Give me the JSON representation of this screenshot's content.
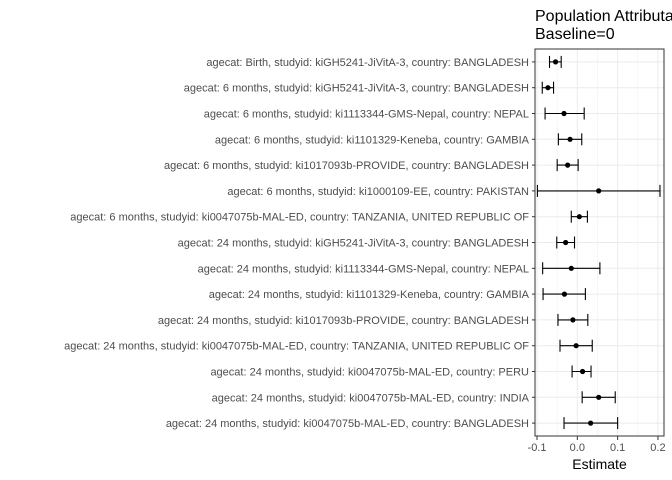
{
  "chart_data": {
    "type": "forest",
    "title_lines": [
      "Population Attributable Difference",
      "Baseline=0"
    ],
    "xlabel": "Estimate",
    "ylabel": "",
    "xlim": [
      -0.105,
      0.215
    ],
    "xticks": [
      -0.1,
      0.0,
      0.1,
      0.2
    ],
    "xtick_labels": [
      "-0.1",
      "0.0",
      "0.1",
      "0.2"
    ],
    "grid": true,
    "legend": "none",
    "rows": [
      {
        "label": "agecat: Birth, studyid: kiGH5241-JiVitA-3, country: BANGLADESH",
        "est": -0.054,
        "lo": -0.069,
        "hi": -0.04
      },
      {
        "label": "agecat: 6 months, studyid: kiGH5241-JiVitA-3, country: BANGLADESH",
        "est": -0.073,
        "lo": -0.087,
        "hi": -0.059
      },
      {
        "label": "agecat: 6 months, studyid: ki1113344-GMS-Nepal, country: NEPAL",
        "est": -0.033,
        "lo": -0.08,
        "hi": 0.017
      },
      {
        "label": "agecat: 6 months, studyid: ki1101329-Keneba, country: GAMBIA",
        "est": -0.018,
        "lo": -0.047,
        "hi": 0.011
      },
      {
        "label": "agecat: 6 months, studyid: ki1017093b-PROVIDE, country: BANGLADESH",
        "est": -0.024,
        "lo": -0.05,
        "hi": 0.002
      },
      {
        "label": "agecat: 6 months, studyid: ki1000109-EE, country: PAKISTAN",
        "est": 0.053,
        "lo": -0.099,
        "hi": 0.205
      },
      {
        "label": "agecat: 6 months, studyid: ki0047075b-MAL-ED, country: TANZANIA, UNITED REPUBLIC OF",
        "est": 0.005,
        "lo": -0.015,
        "hi": 0.025
      },
      {
        "label": "agecat: 24 months, studyid: kiGH5241-JiVitA-3, country: BANGLADESH",
        "est": -0.029,
        "lo": -0.051,
        "hi": -0.007
      },
      {
        "label": "agecat: 24 months, studyid: ki1113344-GMS-Nepal, country: NEPAL",
        "est": -0.015,
        "lo": -0.086,
        "hi": 0.056
      },
      {
        "label": "agecat: 24 months, studyid: ki1101329-Keneba, country: GAMBIA",
        "est": -0.032,
        "lo": -0.085,
        "hi": 0.02
      },
      {
        "label": "agecat: 24 months, studyid: ki1017093b-PROVIDE, country: BANGLADESH",
        "est": -0.011,
        "lo": -0.048,
        "hi": 0.026
      },
      {
        "label": "agecat: 24 months, studyid: ki0047075b-MAL-ED, country: TANZANIA, UNITED REPUBLIC OF",
        "est": -0.003,
        "lo": -0.043,
        "hi": 0.037
      },
      {
        "label": "agecat: 24 months, studyid: ki0047075b-MAL-ED, country: PERU",
        "est": 0.013,
        "lo": -0.013,
        "hi": 0.034
      },
      {
        "label": "agecat: 24 months, studyid: ki0047075b-MAL-ED, country: INDIA",
        "est": 0.053,
        "lo": 0.012,
        "hi": 0.094
      },
      {
        "label": "agecat: 24 months, studyid: ki0047075b-MAL-ED, country: BANGLADESH",
        "est": 0.033,
        "lo": -0.033,
        "hi": 0.1
      }
    ]
  }
}
